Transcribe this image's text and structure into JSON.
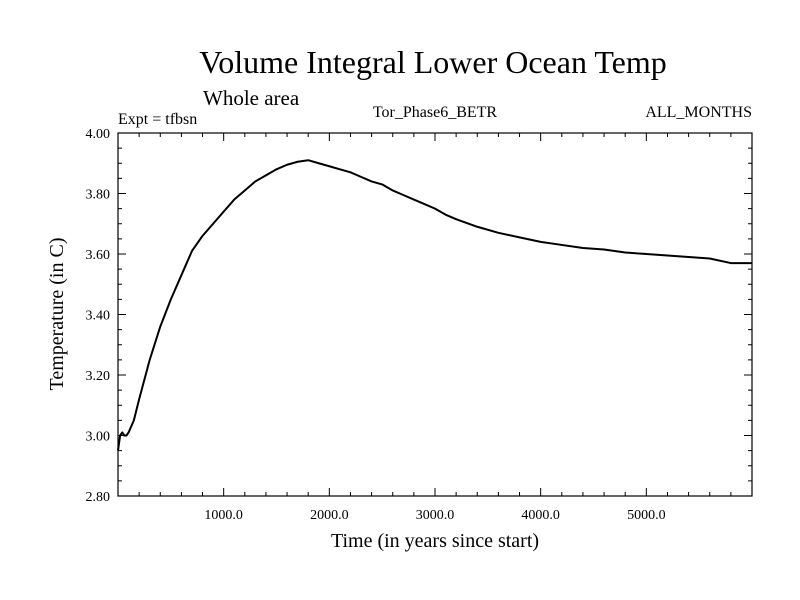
{
  "chart_data": {
    "type": "line",
    "title": "Volume Integral Lower Ocean Temp",
    "subtitle": "Whole area",
    "left_label": "Expt = tfbsn",
    "center_label": "Tor_Phase6_BETR",
    "right_label": "ALL_MONTHS",
    "xlabel": "Time (in years since start)",
    "ylabel": "Temperature (in C)",
    "xlim": [
      0,
      6000
    ],
    "ylim": [
      2.8,
      4.0
    ],
    "x_ticks": [
      1000,
      2000,
      3000,
      4000,
      5000
    ],
    "x_tick_labels": [
      "1000.0",
      "2000.0",
      "3000.0",
      "4000.0",
      "5000.0"
    ],
    "y_ticks": [
      2.8,
      3.0,
      3.2,
      3.4,
      3.6,
      3.8,
      4.0
    ],
    "y_tick_labels": [
      "2.80",
      "3.00",
      "3.20",
      "3.40",
      "3.60",
      "3.80",
      "4.00"
    ],
    "series": [
      {
        "name": "temperature",
        "color": "#000000",
        "x": [
          0,
          20,
          40,
          60,
          80,
          100,
          150,
          200,
          300,
          400,
          500,
          600,
          700,
          800,
          900,
          1000,
          1100,
          1200,
          1300,
          1400,
          1500,
          1600,
          1700,
          1800,
          1900,
          2000,
          2100,
          2200,
          2300,
          2400,
          2500,
          2600,
          2700,
          2800,
          2900,
          3000,
          3100,
          3200,
          3400,
          3600,
          3800,
          4000,
          4200,
          4400,
          4600,
          4800,
          5000,
          5200,
          5400,
          5600,
          5800,
          6000
        ],
        "y": [
          2.95,
          3.0,
          3.01,
          3.0,
          3.0,
          3.01,
          3.05,
          3.12,
          3.25,
          3.36,
          3.45,
          3.53,
          3.61,
          3.66,
          3.7,
          3.74,
          3.78,
          3.81,
          3.84,
          3.86,
          3.88,
          3.895,
          3.905,
          3.91,
          3.9,
          3.89,
          3.88,
          3.87,
          3.855,
          3.84,
          3.83,
          3.81,
          3.795,
          3.78,
          3.765,
          3.75,
          3.73,
          3.715,
          3.69,
          3.67,
          3.655,
          3.64,
          3.63,
          3.62,
          3.615,
          3.605,
          3.6,
          3.595,
          3.59,
          3.585,
          3.57,
          3.57
        ]
      }
    ]
  }
}
